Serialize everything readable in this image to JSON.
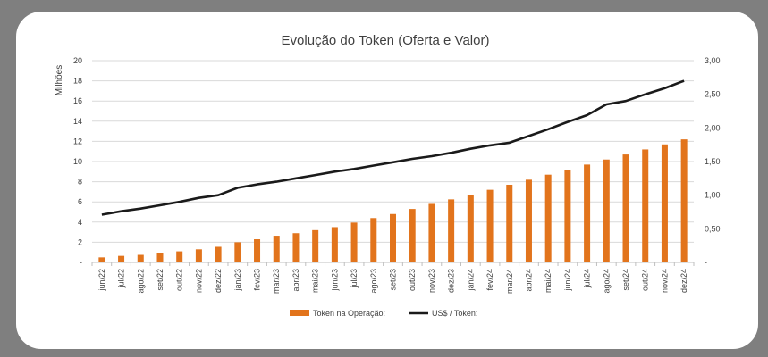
{
  "chart_data": {
    "type": "bar+line",
    "title": "Evolução do Token (Oferta e Valor)",
    "ylabel_left": "Milhões",
    "ylim_left": [
      0,
      20
    ],
    "yticks_left": [
      "-",
      "2",
      "4",
      "6",
      "8",
      "10",
      "12",
      "14",
      "16",
      "18",
      "20"
    ],
    "ylim_right": [
      0,
      3
    ],
    "yticks_right": [
      "-",
      "0,50",
      "1,00",
      "1,50",
      "2,00",
      "2,50",
      "3,00"
    ],
    "grid": true,
    "legend_position": "bottom",
    "categories": [
      "jun/22",
      "jul/22",
      "ago/22",
      "set/22",
      "out/22",
      "nov/22",
      "dez/22",
      "jan/23",
      "fev/23",
      "mar/23",
      "abr/23",
      "mai/23",
      "jun/23",
      "jul/23",
      "ago/23",
      "set/23",
      "out/23",
      "nov/23",
      "dez/23",
      "jan/24",
      "fev/24",
      "mar/24",
      "abr/24",
      "mai/24",
      "jun/24",
      "jul/24",
      "ago/24",
      "set/24",
      "out/24",
      "nov/24",
      "dez/24"
    ],
    "series": [
      {
        "name": "Token na Operação:",
        "type": "bar",
        "axis": "left",
        "color": "#e2741c",
        "values": [
          0.5,
          0.65,
          0.75,
          0.9,
          1.1,
          1.3,
          1.55,
          2.0,
          2.3,
          2.65,
          2.9,
          3.2,
          3.5,
          3.95,
          4.4,
          4.8,
          5.3,
          5.8,
          6.25,
          6.7,
          7.2,
          7.7,
          8.2,
          8.7,
          9.2,
          9.7,
          10.2,
          10.7,
          11.2,
          11.7,
          12.2
        ]
      },
      {
        "name": "US$ / Token:",
        "type": "line",
        "axis": "right",
        "color": "#1a1a1a",
        "values": [
          0.71,
          0.76,
          0.8,
          0.85,
          0.9,
          0.96,
          1.0,
          1.11,
          1.16,
          1.2,
          1.25,
          1.3,
          1.35,
          1.39,
          1.44,
          1.49,
          1.54,
          1.58,
          1.63,
          1.69,
          1.74,
          1.78,
          1.88,
          1.98,
          2.09,
          2.19,
          2.35,
          2.4,
          2.5,
          2.59,
          2.7
        ]
      }
    ]
  }
}
